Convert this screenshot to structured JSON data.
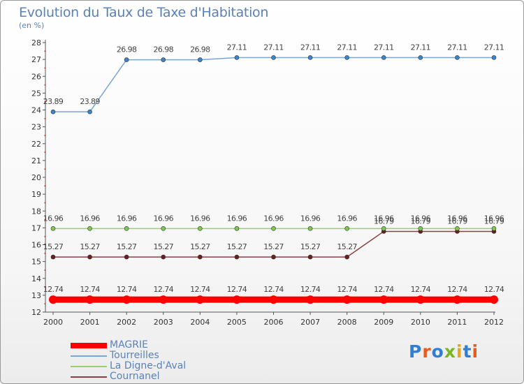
{
  "title": "Evolution du Taux de Taxe d'Habitation",
  "subtitle": "(en %)",
  "logo": {
    "letters": [
      {
        "ch": "P",
        "color": "#2f7fd6"
      },
      {
        "ch": "r",
        "color": "#e85b1c"
      },
      {
        "ch": "o",
        "color": "#2f7fd6"
      },
      {
        "ch": "x",
        "color": "#79b81f"
      },
      {
        "ch": "i",
        "color": "#e8a41c"
      },
      {
        "ch": "t",
        "color": "#2f7fd6"
      },
      {
        "ch": "i",
        "color": "#e85b1c"
      }
    ]
  },
  "chart_data": {
    "type": "line",
    "title": "Evolution du Taux de Taxe d'Habitation",
    "subtitle": "(en %)",
    "xlabel": "",
    "ylabel": "",
    "x": [
      "2000",
      "2001",
      "2002",
      "2003",
      "2004",
      "2005",
      "2006",
      "2007",
      "2008",
      "2009",
      "2010",
      "2011",
      "2012"
    ],
    "ylim": [
      12,
      28
    ],
    "yticks": [
      12,
      13,
      14,
      15,
      16,
      17,
      18,
      19,
      20,
      21,
      22,
      23,
      24,
      25,
      26,
      27,
      28
    ],
    "grid": false,
    "legend_position": "bottom-left",
    "series": [
      {
        "name": "MAGRIE",
        "color": "#ff0000",
        "marker_color": "#ff0000",
        "values": [
          12.74,
          12.74,
          12.74,
          12.74,
          12.74,
          12.74,
          12.74,
          12.74,
          12.74,
          12.74,
          12.74,
          12.74,
          12.74
        ],
        "labels": [
          "12.74",
          "12.74",
          "12.74",
          "12.74",
          "12.74",
          "12.74",
          "12.74",
          "12.74",
          "12.74",
          "12.74",
          "12.74",
          "12.74",
          "12.74"
        ]
      },
      {
        "name": "Tourreilles",
        "color": "#7aa6d4",
        "marker_color": "#3a86c8",
        "values": [
          23.89,
          23.89,
          26.98,
          26.98,
          26.98,
          27.11,
          27.11,
          27.11,
          27.11,
          27.11,
          27.11,
          27.11,
          27.11
        ],
        "labels": [
          "23.89",
          "23.89",
          "26.98",
          "26.98",
          "26.98",
          "27.11",
          "27.11",
          "27.11",
          "27.11",
          "27.11",
          "27.11",
          "27.11",
          "27.11"
        ]
      },
      {
        "name": "La Digne-d'Aval",
        "color": "#99d06a",
        "marker_color": "#7ec850",
        "values": [
          16.96,
          16.96,
          16.96,
          16.96,
          16.96,
          16.96,
          16.96,
          16.96,
          16.96,
          16.96,
          16.96,
          16.96,
          16.96
        ],
        "labels": [
          "16.96",
          "16.96",
          "16.96",
          "16.96",
          "16.96",
          "16.96",
          "16.96",
          "16.96",
          "16.96",
          "16.96",
          "16.96",
          "16.96",
          "16.96"
        ]
      },
      {
        "name": "Cournanel",
        "color": "#8a4040",
        "marker_color": "#6a1f1f",
        "values": [
          15.27,
          15.27,
          15.27,
          15.27,
          15.27,
          15.27,
          15.27,
          15.27,
          15.27,
          16.79,
          16.79,
          16.79,
          16.79
        ],
        "labels": [
          "15.27",
          "15.27",
          "15.27",
          "15.27",
          "15.27",
          "15.27",
          "15.27",
          "15.27",
          "15.27",
          "16.79",
          "16.79",
          "16.79",
          "16.79"
        ]
      }
    ]
  }
}
